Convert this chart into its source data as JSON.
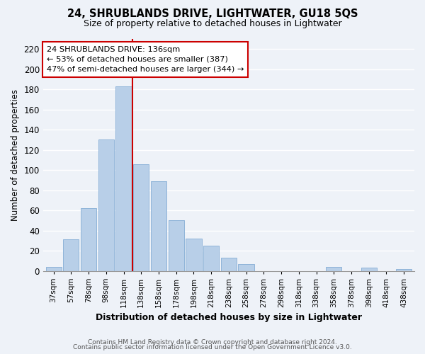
{
  "title": "24, SHRUBLANDS DRIVE, LIGHTWATER, GU18 5QS",
  "subtitle": "Size of property relative to detached houses in Lightwater",
  "xlabel": "Distribution of detached houses by size in Lightwater",
  "ylabel": "Number of detached properties",
  "bar_labels": [
    "37sqm",
    "57sqm",
    "78sqm",
    "98sqm",
    "118sqm",
    "138sqm",
    "158sqm",
    "178sqm",
    "198sqm",
    "218sqm",
    "238sqm",
    "258sqm",
    "278sqm",
    "298sqm",
    "318sqm",
    "338sqm",
    "358sqm",
    "378sqm",
    "398sqm",
    "418sqm",
    "438sqm"
  ],
  "bar_values": [
    4,
    31,
    62,
    130,
    183,
    106,
    89,
    50,
    32,
    25,
    13,
    7,
    0,
    0,
    0,
    0,
    4,
    0,
    3,
    0,
    2
  ],
  "bar_color": "#b8cfe8",
  "bar_edge_color": "#8fb4d9",
  "vline_color": "#cc0000",
  "annotation_title": "24 SHRUBLANDS DRIVE: 136sqm",
  "annotation_line1": "← 53% of detached houses are smaller (387)",
  "annotation_line2": "47% of semi-detached houses are larger (344) →",
  "annotation_box_color": "#ffffff",
  "annotation_box_edge_color": "#cc0000",
  "ylim": [
    0,
    230
  ],
  "yticks": [
    0,
    20,
    40,
    60,
    80,
    100,
    120,
    140,
    160,
    180,
    200,
    220
  ],
  "footer1": "Contains HM Land Registry data © Crown copyright and database right 2024.",
  "footer2": "Contains public sector information licensed under the Open Government Licence v3.0.",
  "bg_color": "#eef2f8",
  "grid_color": "#ffffff",
  "plot_bg_color": "#eef2f8"
}
